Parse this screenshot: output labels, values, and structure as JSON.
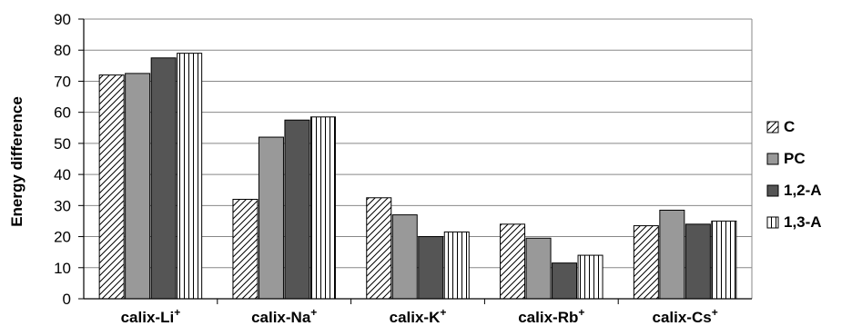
{
  "chart_data": {
    "type": "bar",
    "categories": [
      {
        "base": "calix-Li",
        "sup": "+"
      },
      {
        "base": "calix-Na",
        "sup": "+"
      },
      {
        "base": "calix-K",
        "sup": "+"
      },
      {
        "base": "calix-Rb",
        "sup": "+"
      },
      {
        "base": "calix-Cs",
        "sup": "+"
      }
    ],
    "series": [
      {
        "name": "C",
        "pattern": "diagonal-hatch",
        "color": "#ffffff",
        "values": [
          72,
          32,
          32.5,
          24,
          23.5
        ]
      },
      {
        "name": "PC",
        "pattern": "solid",
        "color": "#999999",
        "values": [
          72.5,
          52,
          27,
          19.5,
          28.5
        ]
      },
      {
        "name": "1,2-A",
        "pattern": "solid",
        "color": "#555555",
        "values": [
          77.5,
          57.5,
          20,
          11.5,
          24
        ]
      },
      {
        "name": "1,3-A",
        "pattern": "vertical-stripes",
        "color": "#ffffff",
        "values": [
          79,
          58.5,
          21.5,
          14,
          25
        ]
      }
    ],
    "ylabel": "Energy difference",
    "xlabel": "",
    "title": "",
    "ylim": [
      0,
      90
    ],
    "yticks": [
      0,
      10,
      20,
      30,
      40,
      50,
      60,
      70,
      80,
      90
    ],
    "grid": true,
    "legend_position": "right"
  }
}
